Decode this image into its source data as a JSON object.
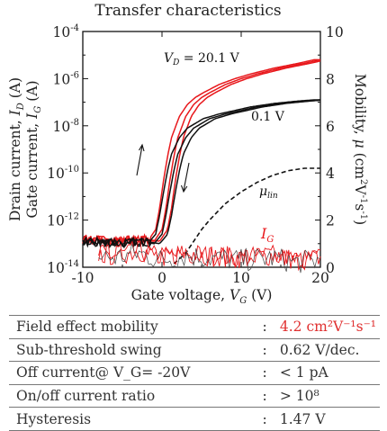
{
  "chart_data": {
    "type": "line",
    "title": "Transfer characteristics",
    "xlabel": "Gate voltage, V_G (V)",
    "ylabel_left": [
      "Drain current, I_D (A)",
      "Gate current, I_G (A)"
    ],
    "ylabel_right": "Mobility, μ (cm²V⁻¹s⁻¹)",
    "xlim": [
      -10,
      20
    ],
    "ylim_left_log10": [
      -14,
      -4
    ],
    "ylim_right": [
      0,
      10
    ],
    "x_ticks": [
      "-10",
      "0",
      "10",
      "20"
    ],
    "y_ticks_left": [
      "10^-14",
      "10^-12",
      "10^-10",
      "10^-8",
      "10^-6",
      "10^-4"
    ],
    "y_ticks_right": [
      "0",
      "2",
      "4",
      "6",
      "8",
      "10"
    ],
    "colors": {
      "vd_high": "#e8181c",
      "vd_low": "#111111",
      "ig": "#e8181c",
      "mobility": "#111111"
    },
    "annotations": {
      "vd_high": "V_D = 20.1 V",
      "vd_low": "0.1 V",
      "mobility": "μ_lin",
      "ig": "I_G"
    },
    "series": [
      {
        "name": "V_D = 20.1 V",
        "axis": "left",
        "style": "solid",
        "color": "#e8181c",
        "x": [
          -10,
          -5,
          -3,
          -1,
          0,
          0.5,
          1,
          1.5,
          2,
          3,
          4,
          5,
          6,
          8,
          10,
          12,
          15,
          18,
          20
        ],
        "log10_y": [
          -12.8,
          -12.9,
          -12.8,
          -12.9,
          -12.4,
          -11.5,
          -10.3,
          -9.3,
          -8.5,
          -7.6,
          -7.1,
          -6.8,
          -6.6,
          -6.25,
          -6.0,
          -5.8,
          -5.55,
          -5.35,
          -5.2
        ]
      },
      {
        "name": "0.1 V",
        "axis": "left",
        "style": "solid",
        "color": "#111111",
        "x": [
          -10,
          -5,
          -3,
          -1,
          0,
          0.5,
          1,
          1.5,
          2,
          3,
          4,
          5,
          6,
          8,
          10,
          12,
          15,
          18,
          20
        ],
        "log10_y": [
          -12.9,
          -13.0,
          -12.9,
          -13.0,
          -12.6,
          -11.8,
          -10.8,
          -9.9,
          -9.2,
          -8.5,
          -8.1,
          -7.9,
          -7.7,
          -7.5,
          -7.35,
          -7.2,
          -7.05,
          -6.95,
          -6.9
        ]
      },
      {
        "name": "μ_lin",
        "axis": "right",
        "style": "dashed",
        "color": "#111111",
        "x": [
          1.5,
          3,
          4,
          5,
          6,
          8,
          10,
          12,
          14,
          16,
          18,
          20
        ],
        "y": [
          0.15,
          0.6,
          1.1,
          1.6,
          2.0,
          2.7,
          3.2,
          3.6,
          3.9,
          4.1,
          4.2,
          4.2
        ]
      },
      {
        "name": "I_G",
        "axis": "left",
        "style": "solid",
        "color": "#e8181c",
        "x": [
          -10,
          -6,
          -3,
          0,
          3,
          6,
          10,
          14,
          17,
          20
        ],
        "log10_y": [
          -13.4,
          -13.5,
          -13.3,
          -13.6,
          -13.4,
          -13.5,
          -13.6,
          -13.5,
          -13.7,
          -13.6
        ]
      }
    ]
  },
  "table": {
    "rows": [
      {
        "label": "Field effect mobility",
        "colon": ":",
        "value": "4.2 cm²V⁻¹s⁻¹",
        "highlight": true
      },
      {
        "label": "Sub-threshold swing",
        "colon": ":",
        "value": "0.62 V/dec.",
        "highlight": false
      },
      {
        "label": "Off current@ V_G= -20V",
        "colon": ":",
        "value": "< 1 pA",
        "highlight": false
      },
      {
        "label": "On/off current ratio",
        "colon": ":",
        "value": "> 10⁸",
        "highlight": false
      },
      {
        "label": "Hysteresis",
        "colon": ":",
        "value": "1.47 V",
        "highlight": false
      }
    ]
  }
}
